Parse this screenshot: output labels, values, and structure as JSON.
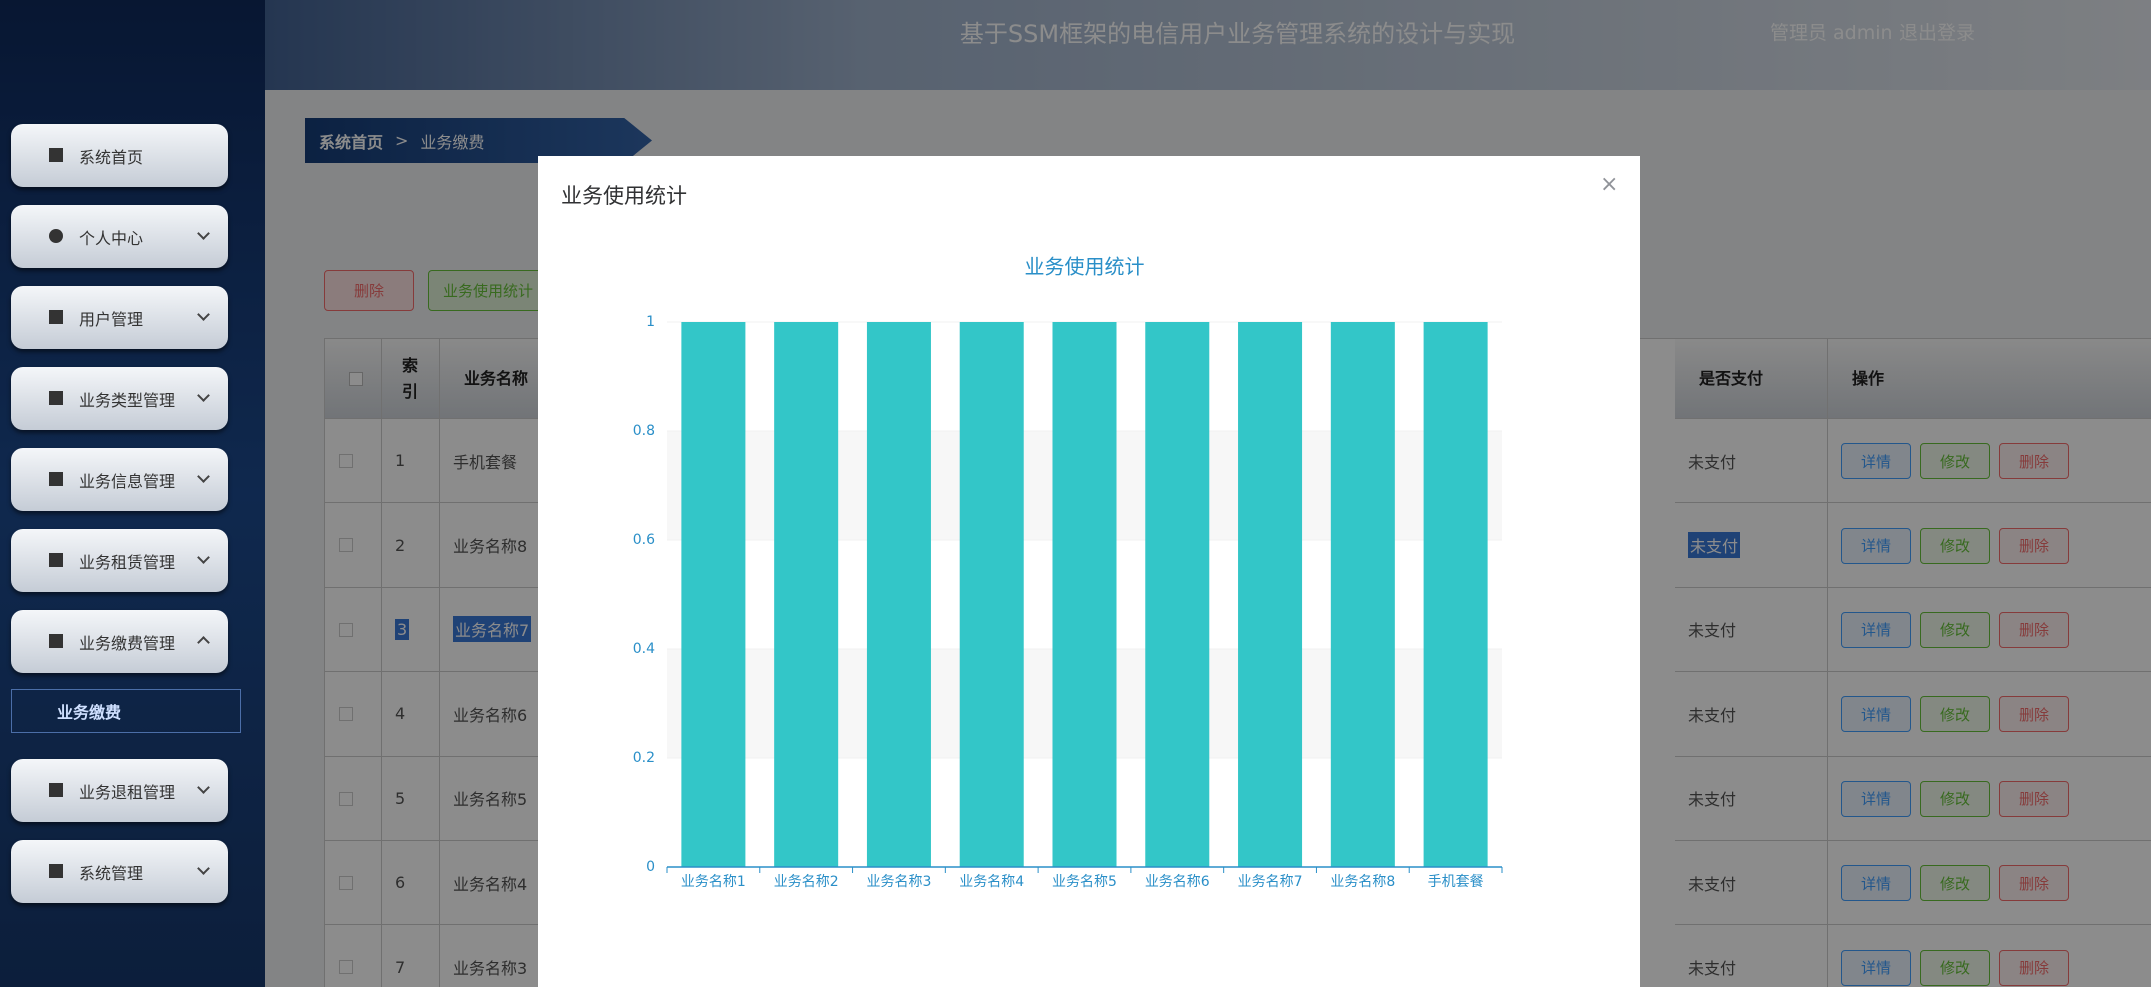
{
  "header": {
    "title": "基于SSM框架的电信用户业务管理系统的设计与实现",
    "user": "管理员 admin",
    "logout": "退出登录"
  },
  "sidebar": {
    "menu": [
      "系统首页",
      "个人中心",
      "用户管理",
      "业务类型管理",
      "业务信息管理",
      "业务租赁管理",
      "业务缴费管理",
      "业务退租管理",
      "系统管理"
    ],
    "submenu": "业务缴费"
  },
  "breadcrumb": {
    "home": "系统首页",
    "separator": ">",
    "current": "业务缴费"
  },
  "toolbar": {
    "delete": "删除",
    "stats": "业务使用统计"
  },
  "table": {
    "headers": [
      "索引",
      "业务名称",
      "是否支付",
      "操作"
    ],
    "rows": [
      [
        "1",
        "手机套餐",
        "未支付"
      ],
      [
        "2",
        "业务名称8",
        "未支付"
      ],
      [
        "3",
        "业务名称7",
        "未支付"
      ],
      [
        "4",
        "业务名称6",
        "未支付"
      ],
      [
        "5",
        "业务名称5",
        "未支付"
      ],
      [
        "6",
        "业务名称4",
        "未支付"
      ],
      [
        "7",
        "业务名称3",
        "未支付"
      ]
    ],
    "actions": [
      "详情",
      "修改",
      "删除"
    ]
  },
  "modal": {
    "title": "业务使用统计",
    "close": "×"
  },
  "chart_data": {
    "type": "bar",
    "title": "业务使用统计",
    "categories": [
      "业务名称1",
      "业务名称2",
      "业务名称3",
      "业务名称4",
      "业务名称5",
      "业务名称6",
      "业务名称7",
      "业务名称8",
      "手机套餐"
    ],
    "values": [
      1,
      1,
      1,
      1,
      1,
      1,
      1,
      1,
      1
    ],
    "color": "#33c6c8",
    "ylim": [
      0,
      1
    ],
    "yticks": [
      0,
      0.2,
      0.4,
      0.6,
      0.8,
      1
    ],
    "grid": true
  }
}
